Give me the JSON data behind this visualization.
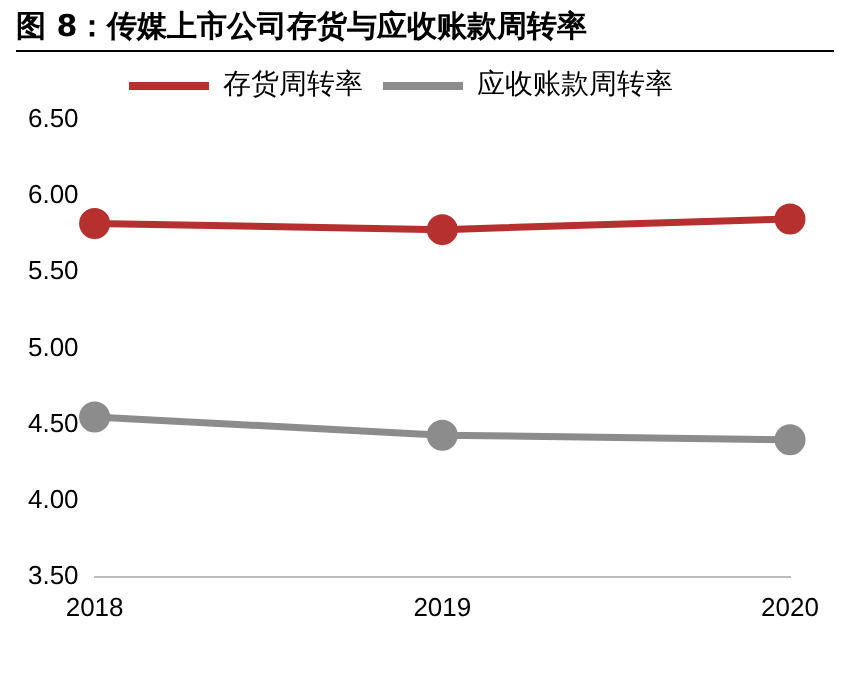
{
  "chart_data": {
    "type": "line",
    "title": "图 8：传媒上市公司存货与应收账款周转率",
    "categories": [
      "2018",
      "2019",
      "2020"
    ],
    "series": [
      {
        "name": "存货周转率",
        "color": "#b5302e",
        "values": [
          5.82,
          5.78,
          5.85
        ]
      },
      {
        "name": "应收账款周转率",
        "color": "#8c8c8c",
        "values": [
          4.55,
          4.43,
          4.4
        ]
      }
    ],
    "ylim": [
      3.5,
      6.5
    ],
    "yticks": [
      {
        "value": 3.5,
        "label": "3.50"
      },
      {
        "value": 4,
        "label": "4.00"
      },
      {
        "value": 4.5,
        "label": "4.50"
      },
      {
        "value": 5,
        "label": "5.00"
      },
      {
        "value": 5.5,
        "label": "5.50"
      },
      {
        "value": 6,
        "label": "6.00"
      },
      {
        "value": 6.5,
        "label": "6.50"
      }
    ],
    "grid": false,
    "legend": "top",
    "marker": "circle",
    "line_style": "solid"
  }
}
